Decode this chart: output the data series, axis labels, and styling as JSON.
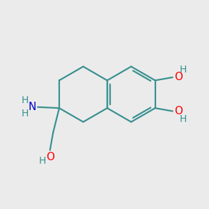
{
  "background_color": "#ebebeb",
  "bond_color": "#3a9090",
  "atom_colors": {
    "O": "#ff0000",
    "N": "#0000cd",
    "H": "#3a9090"
  },
  "figsize": [
    3.0,
    3.0
  ],
  "dpi": 100,
  "bond_lw": 1.6,
  "font_size": 10
}
